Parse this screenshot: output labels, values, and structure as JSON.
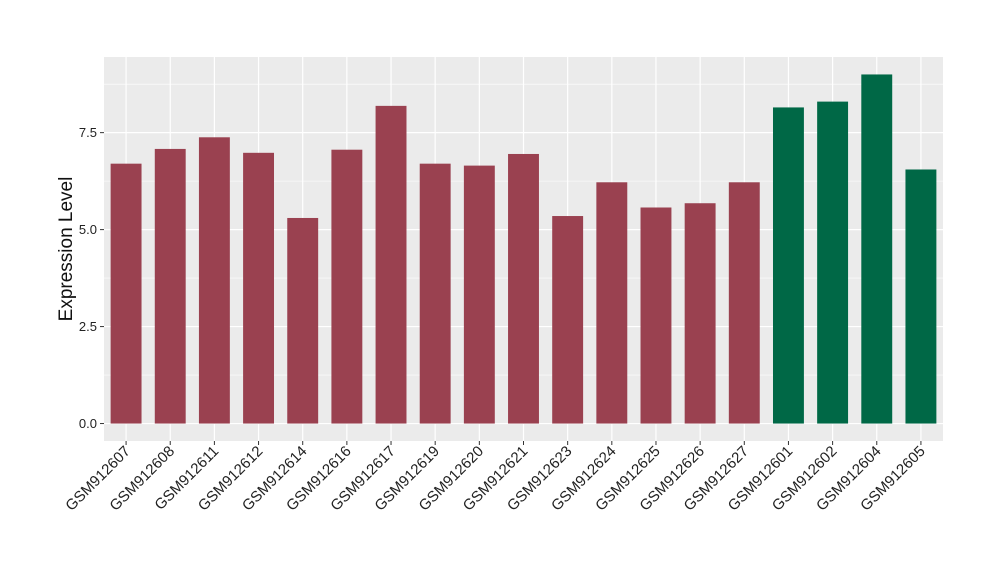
{
  "chart_data": {
    "type": "bar",
    "ylabel": "Expression Level",
    "xlabel": "",
    "ylim": [
      -0.45,
      9.45
    ],
    "yticks": [
      0.0,
      2.5,
      5.0,
      7.5
    ],
    "ytick_labels": [
      "0.0",
      "2.5",
      "5.0",
      "7.5"
    ],
    "grid": true,
    "categories": [
      "GSM912607",
      "GSM912608",
      "GSM912611",
      "GSM912612",
      "GSM912614",
      "GSM912616",
      "GSM912617",
      "GSM912619",
      "GSM912620",
      "GSM912621",
      "GSM912623",
      "GSM912624",
      "GSM912625",
      "GSM912626",
      "GSM912627",
      "GSM912601",
      "GSM912602",
      "GSM912604",
      "GSM912605"
    ],
    "values": [
      6.7,
      7.08,
      7.38,
      6.98,
      5.3,
      7.06,
      8.19,
      6.7,
      6.65,
      6.95,
      5.35,
      6.22,
      5.57,
      5.68,
      6.22,
      8.15,
      8.3,
      9.0,
      6.55
    ],
    "bar_colors": [
      "#9a4150",
      "#9a4150",
      "#9a4150",
      "#9a4150",
      "#9a4150",
      "#9a4150",
      "#9a4150",
      "#9a4150",
      "#9a4150",
      "#9a4150",
      "#9a4150",
      "#9a4150",
      "#9a4150",
      "#9a4150",
      "#9a4150",
      "#006846",
      "#006846",
      "#006846",
      "#006846"
    ],
    "panel_background": "#ebebeb",
    "grid_color": "#ffffff"
  }
}
